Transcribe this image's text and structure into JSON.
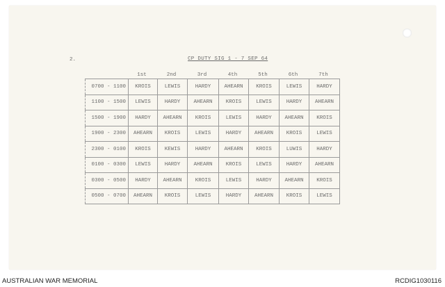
{
  "document": {
    "page_number": "2.",
    "title": "CP DUTY SIG 1 - 7 SEP 64",
    "columns": [
      "1st",
      "2nd",
      "3rd",
      "4th",
      "5th",
      "6th",
      "7th"
    ],
    "rows": [
      {
        "time": "0700 - 1100",
        "cells": [
          "KROIS",
          "LEWIS",
          "HARDY",
          "AHEARN",
          "KROIS",
          "LEWIS",
          "HARDY"
        ]
      },
      {
        "time": "1100 - 1500",
        "cells": [
          "LEWIS",
          "HARDY",
          "AHEARN",
          "KROIS",
          "LEWIS",
          "HARDY",
          "AHEARN"
        ]
      },
      {
        "time": "1500 - 1900",
        "cells": [
          "HARDY",
          "AHEARN",
          "KROIS",
          "LEWIS",
          "HARDY",
          "AHEARN",
          "KROIS"
        ]
      },
      {
        "time": "1900 - 2300",
        "cells": [
          "AHEARN",
          "KROIS",
          "LEWIS",
          "HARDY",
          "AHEARN",
          "KROIS",
          "LEWIS"
        ]
      },
      {
        "time": "2300 - 0100",
        "cells": [
          "KROIS",
          "KEWIS",
          "HARDY",
          "AHEARN",
          "KROIS",
          "LUWIS",
          "HARDY"
        ]
      },
      {
        "time": "0100 - 0300",
        "cells": [
          "LEWIS",
          "HARDY",
          "AHEARN",
          "KROIS",
          "LEWIS",
          "HARDY",
          "AHEARN"
        ]
      },
      {
        "time": "0300 - 0500",
        "cells": [
          "HARDY",
          "AHEARN",
          "KROIS",
          "LEWIS",
          "HARDY",
          "AHEARN",
          "KROIS"
        ]
      },
      {
        "time": "0500 - 0700",
        "cells": [
          "AHEARN",
          "KROIS",
          "LEWIS",
          "HARDY",
          "AHEARN",
          "KROIS",
          "LEWIS"
        ]
      }
    ]
  },
  "footer": {
    "institution": "AUSTRALIAN WAR MEMORIAL",
    "record_id": "RCDIG1030116"
  }
}
